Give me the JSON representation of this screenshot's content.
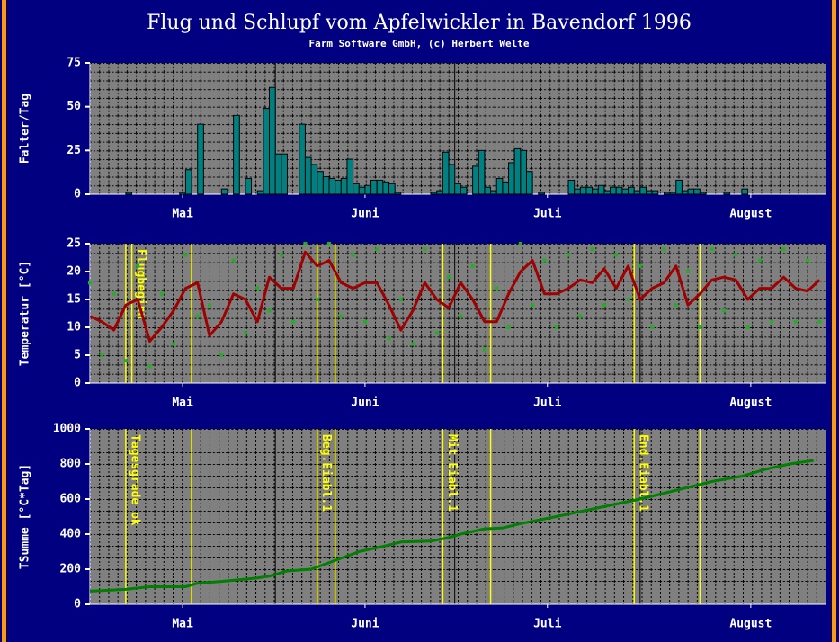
{
  "title": "Flug und Schlupf vom Apfelwickler in Bavendorf 1996",
  "subtitle": "Farm Software GmbH, (c) Herbert Welte",
  "chart_data": [
    {
      "type": "bar",
      "ylabel": "Falter/Tag",
      "color": "#008080",
      "xlim": [
        0,
        123
      ],
      "ylim": [
        0,
        75
      ],
      "yticks": [
        0,
        25,
        50,
        75
      ],
      "xticks": [
        {
          "value": 15.5,
          "label": "Mai"
        },
        {
          "value": 46,
          "label": "Juni"
        },
        {
          "value": 76.5,
          "label": "Juli"
        },
        {
          "value": 110.5,
          "label": "August"
        }
      ],
      "month_lines": [
        31,
        61,
        92
      ],
      "x": [
        6,
        15,
        16,
        18,
        22,
        24,
        26,
        28,
        29,
        30,
        31,
        32,
        35,
        36,
        37,
        38,
        39,
        40,
        41,
        42,
        43,
        44,
        45,
        46,
        47,
        48,
        49,
        50,
        51,
        57,
        58,
        59,
        60,
        61,
        62,
        64,
        65,
        66,
        67,
        68,
        69,
        70,
        71,
        72,
        73,
        75,
        80,
        81,
        82,
        83,
        84,
        85,
        86,
        87,
        88,
        89,
        90,
        91,
        92,
        93,
        94,
        96,
        97,
        98,
        99,
        100,
        101,
        102,
        106,
        109
      ],
      "values": [
        1,
        1,
        14,
        40,
        3,
        45,
        9,
        2,
        49,
        61,
        23,
        23,
        40,
        21,
        17,
        13,
        10,
        9,
        8,
        9,
        20,
        6,
        4,
        5,
        8,
        8,
        7,
        6,
        1,
        1,
        2,
        24,
        17,
        6,
        4,
        16,
        25,
        4,
        2,
        9,
        7,
        18,
        26,
        25,
        13,
        1,
        8,
        3,
        4,
        4,
        3,
        5,
        2,
        4,
        4,
        3,
        4,
        2,
        4,
        2,
        2,
        1,
        1,
        8,
        2,
        3,
        3,
        1,
        1,
        3
      ]
    },
    {
      "type": "line",
      "ylabel": "Temperatur [°C]",
      "xlim": [
        0,
        123
      ],
      "ylim": [
        0,
        25
      ],
      "yticks": [
        0,
        5,
        10,
        15,
        20,
        25
      ],
      "xticks": [
        {
          "value": 15.5,
          "label": "Mai"
        },
        {
          "value": 46,
          "label": "Juni"
        },
        {
          "value": 76.5,
          "label": "Juli"
        },
        {
          "value": 110.5,
          "label": "August"
        }
      ],
      "month_lines": [
        31,
        61,
        92
      ],
      "vlines": [
        6,
        7,
        17,
        38,
        41,
        59,
        67,
        91,
        102
      ],
      "annotations": [
        {
          "x": 7,
          "text": "Flugbeginn"
        }
      ],
      "x": [
        0,
        2,
        4,
        6,
        8,
        10,
        12,
        14,
        16,
        18,
        20,
        22,
        24,
        26,
        28,
        30,
        32,
        34,
        36,
        38,
        40,
        42,
        44,
        46,
        48,
        50,
        52,
        54,
        56,
        58,
        60,
        62,
        64,
        66,
        68,
        70,
        72,
        74,
        76,
        78,
        80,
        82,
        84,
        86,
        88,
        90,
        92,
        94,
        96,
        98,
        100,
        102,
        104,
        106,
        108,
        110,
        112,
        114,
        116,
        118,
        120,
        122
      ],
      "series": [
        {
          "type": "line",
          "color": "#a00000",
          "values": [
            12,
            11,
            9.5,
            14,
            15,
            7.5,
            10,
            13,
            17,
            18,
            8.5,
            11,
            16,
            15,
            11,
            19,
            17,
            17,
            23.5,
            21,
            22,
            18,
            17,
            18,
            18,
            14,
            9.5,
            13,
            18,
            15,
            13.5,
            18,
            15,
            11,
            11,
            16,
            20,
            22,
            16,
            16,
            17,
            18.5,
            18,
            20.5,
            17,
            21,
            15,
            17,
            18,
            21,
            14,
            16,
            18.5,
            19,
            18.5,
            15,
            17,
            17,
            19,
            17,
            16.5,
            18.5
          ]
        },
        {
          "type": "scatter",
          "color": "#20b020",
          "values": [
            18,
            5,
            16,
            4,
            21,
            3,
            16,
            7,
            23,
            12,
            14,
            5,
            22,
            9,
            17,
            13,
            23,
            11,
            25,
            15,
            25,
            12,
            23,
            11,
            24,
            8,
            15,
            7,
            24,
            9,
            19,
            12,
            21,
            6,
            17,
            10,
            25,
            14,
            22,
            10,
            23,
            12,
            24,
            14,
            23,
            15,
            21,
            10,
            24,
            14,
            20,
            10,
            24,
            13,
            23,
            10,
            22,
            11,
            24,
            11,
            22,
            11
          ]
        }
      ]
    },
    {
      "type": "line",
      "ylabel": "TSumme [°C*Tag]",
      "xlim": [
        0,
        123
      ],
      "ylim": [
        0,
        1000
      ],
      "yticks": [
        0,
        200,
        400,
        600,
        800,
        1000
      ],
      "xticks": [
        {
          "value": 15.5,
          "label": "Mai"
        },
        {
          "value": 46,
          "label": "Juni"
        },
        {
          "value": 76.5,
          "label": "Juli"
        },
        {
          "value": 110.5,
          "label": "August"
        }
      ],
      "month_lines": [
        31,
        61,
        92
      ],
      "vlines": [
        6,
        17,
        38,
        41,
        59,
        67,
        91,
        102
      ],
      "annotations": [
        {
          "x": 6,
          "text": "Tagesgrade ok"
        },
        {
          "x": 38,
          "text": "Beg.Eiabl.1"
        },
        {
          "x": 59,
          "text": "Mit.Eiabl.1"
        },
        {
          "x": 91,
          "text": "End.Eiabl.1"
        }
      ],
      "x": [
        0,
        6,
        10,
        16,
        18,
        22,
        28,
        30,
        33,
        37,
        41,
        45,
        49,
        52,
        57,
        60,
        62,
        66,
        69,
        72,
        78,
        85,
        92,
        98,
        104,
        109,
        113,
        117,
        121
      ],
      "series": [
        {
          "type": "line",
          "color": "#008000",
          "values": [
            75,
            85,
            100,
            100,
            120,
            130,
            150,
            160,
            190,
            200,
            250,
            300,
            330,
            355,
            360,
            380,
            400,
            430,
            435,
            460,
            500,
            550,
            600,
            650,
            700,
            730,
            770,
            800,
            820
          ]
        }
      ]
    }
  ]
}
